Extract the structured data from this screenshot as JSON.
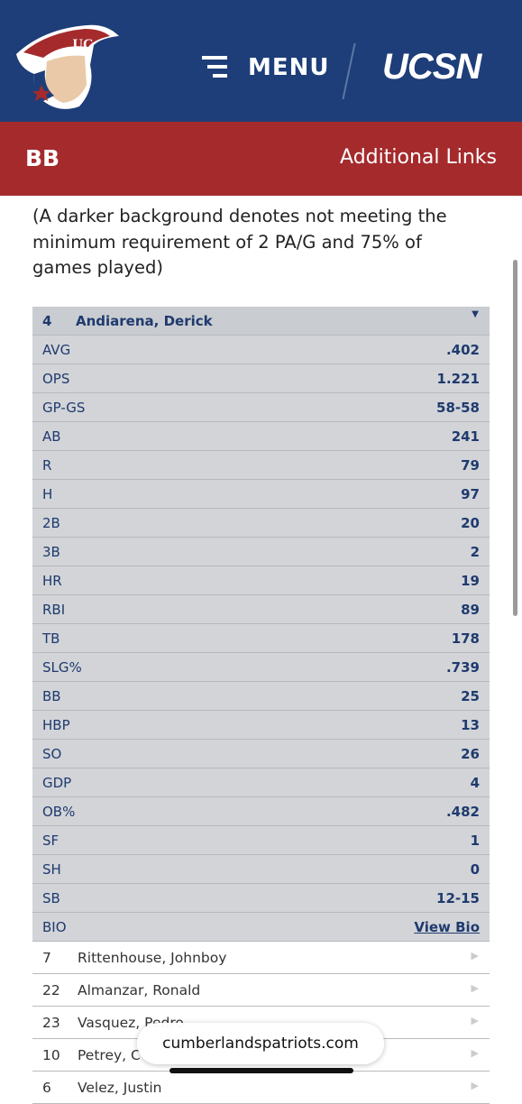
{
  "header": {
    "logo_text": "UC",
    "menu": "MENU",
    "brand": "UCSN"
  },
  "nav": {
    "title": "BB",
    "links": "Additional Links"
  },
  "note": "(A darker background denotes not meeting the minimum requirement of 2 PA/G and 75% of games played)",
  "player": {
    "number": "4",
    "name": "Andiarena, Derick",
    "stats": [
      [
        "AVG",
        ".402"
      ],
      [
        "OPS",
        "1.221"
      ],
      [
        "GP-GS",
        "58-58"
      ],
      [
        "AB",
        "241"
      ],
      [
        "R",
        "79"
      ],
      [
        "H",
        "97"
      ],
      [
        "2B",
        "20"
      ],
      [
        "3B",
        "2"
      ],
      [
        "HR",
        "19"
      ],
      [
        "RBI",
        "89"
      ],
      [
        "TB",
        "178"
      ],
      [
        "SLG%",
        ".739"
      ],
      [
        "BB",
        "25"
      ],
      [
        "HBP",
        "13"
      ],
      [
        "SO",
        "26"
      ],
      [
        "GDP",
        "4"
      ],
      [
        "OB%",
        ".482"
      ],
      [
        "SF",
        "1"
      ],
      [
        "SH",
        "0"
      ],
      [
        "SB",
        "12-15"
      ]
    ],
    "bio_label": "BIO",
    "bio_link": "View Bio"
  },
  "others": [
    [
      "7",
      "Rittenhouse, Johnboy"
    ],
    [
      "22",
      "Almanzar, Ronald"
    ],
    [
      "23",
      "Vasquez, Pedro"
    ],
    [
      "10",
      "Petrey, C"
    ],
    [
      "6",
      "Velez, Justin"
    ]
  ],
  "browser": {
    "url": "cumberlandspatriots.com"
  }
}
